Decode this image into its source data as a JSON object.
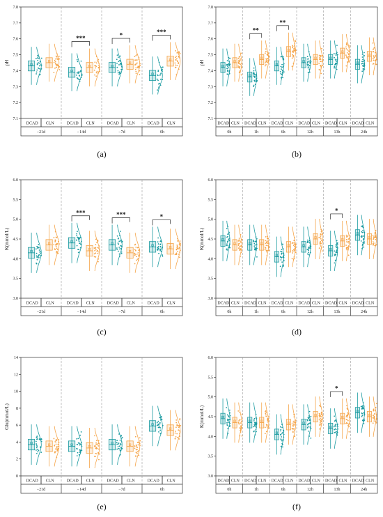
{
  "colors": {
    "dcad": "#1a9aa0",
    "cln": "#f5a54a"
  },
  "chart_data": [
    {
      "type": "box",
      "panel": "(a)",
      "ylabel": "pH",
      "ylim": [
        7.1,
        7.8
      ],
      "yticks": [
        "7.1",
        "7.2",
        "7.3",
        "7.4",
        "7.5",
        "7.6",
        "7.7",
        "7.8"
      ],
      "groups": [
        "DCAD",
        "CLN"
      ],
      "times": [
        "−21d",
        "−14d",
        "−7d",
        "0h"
      ],
      "series": [
        {
          "name": "DCAD",
          "values": [
            7.43,
            7.39,
            7.42,
            7.37
          ]
        },
        {
          "name": "CLN",
          "values": [
            7.45,
            7.42,
            7.44,
            7.46
          ]
        }
      ],
      "significance": [
        "",
        "***",
        "*",
        "***"
      ]
    },
    {
      "type": "box",
      "panel": "(b)",
      "ylabel": "pH",
      "ylim": [
        7.1,
        7.8
      ],
      "yticks": [
        "7.1",
        "7.2",
        "7.3",
        "7.4",
        "7.5",
        "7.6",
        "7.7",
        "7.8"
      ],
      "groups": [
        "DCAD",
        "CLN"
      ],
      "times": [
        "0h",
        "1h",
        "6h",
        "12h",
        "13h",
        "24h"
      ],
      "series": [
        {
          "name": "DCAD",
          "values": [
            7.42,
            7.36,
            7.43,
            7.45,
            7.47,
            7.44
          ]
        },
        {
          "name": "CLN",
          "values": [
            7.45,
            7.47,
            7.52,
            7.47,
            7.51,
            7.49
          ]
        }
      ],
      "significance": [
        "",
        "**",
        "**",
        "",
        "",
        ""
      ]
    },
    {
      "type": "box",
      "panel": "(c)",
      "ylabel": "K(mmol/L)",
      "ylim": [
        3.0,
        6.0
      ],
      "yticks": [
        "3.0",
        "3.5",
        "4.0",
        "4.5",
        "5.0",
        "5.5",
        "6.0"
      ],
      "groups": [
        "DCAD",
        "CLN"
      ],
      "times": [
        "−21d",
        "−14d",
        "−7d",
        "0h"
      ],
      "series": [
        {
          "name": "DCAD",
          "values": [
            4.15,
            4.4,
            4.35,
            4.3
          ]
        },
        {
          "name": "CLN",
          "values": [
            4.35,
            4.2,
            4.15,
            4.25
          ]
        }
      ],
      "significance": [
        "",
        "***",
        "***",
        "*"
      ]
    },
    {
      "type": "box",
      "panel": "(d)",
      "ylabel": "K(mmol/L)",
      "ylim": [
        3.0,
        6.0
      ],
      "yticks": [
        "3.0",
        "3.5",
        "4.0",
        "4.5",
        "5.0",
        "5.5",
        "6.0"
      ],
      "groups": [
        "DCAD",
        "CLN"
      ],
      "times": [
        "0h",
        "1h",
        "6h",
        "12h",
        "13h",
        "24h"
      ],
      "series": [
        {
          "name": "DCAD",
          "values": [
            4.45,
            4.35,
            4.05,
            4.3,
            4.2,
            4.6
          ]
        },
        {
          "name": "CLN",
          "values": [
            4.35,
            4.35,
            4.3,
            4.5,
            4.45,
            4.5
          ]
        }
      ],
      "significance": [
        "",
        "",
        "",
        "",
        "*",
        ""
      ]
    },
    {
      "type": "box",
      "panel": "(e)",
      "ylabel": "Glu(mmol/L)",
      "ylim": [
        0,
        14
      ],
      "yticks": [
        "0",
        "2",
        "4",
        "6",
        "8",
        "10",
        "12",
        "14"
      ],
      "groups": [
        "DCAD",
        "CLN"
      ],
      "times": [
        "−21d",
        "−14d",
        "−7d",
        "0h"
      ],
      "series": [
        {
          "name": "DCAD",
          "values": [
            3.7,
            3.5,
            3.7,
            5.9
          ]
        },
        {
          "name": "CLN",
          "values": [
            3.5,
            3.3,
            3.5,
            5.4
          ]
        }
      ],
      "significance": [
        "",
        "",
        "",
        ""
      ]
    },
    {
      "type": "box",
      "panel": "(f)",
      "ylabel": "K(mmol/L)",
      "ylim": [
        3.0,
        6.0
      ],
      "yticks": [
        "3.0",
        "3.5",
        "4.0",
        "4.5",
        "5.0",
        "5.5",
        "6.0"
      ],
      "groups": [
        "DCAD",
        "CLN"
      ],
      "times": [
        "0h",
        "1h",
        "6h",
        "12h",
        "13h",
        "24h"
      ],
      "series": [
        {
          "name": "DCAD",
          "values": [
            4.45,
            4.35,
            4.05,
            4.3,
            4.2,
            4.6
          ]
        },
        {
          "name": "CLN",
          "values": [
            4.35,
            4.35,
            4.3,
            4.5,
            4.45,
            4.5
          ]
        }
      ],
      "significance": [
        "",
        "",
        "",
        "",
        "*",
        ""
      ]
    }
  ]
}
